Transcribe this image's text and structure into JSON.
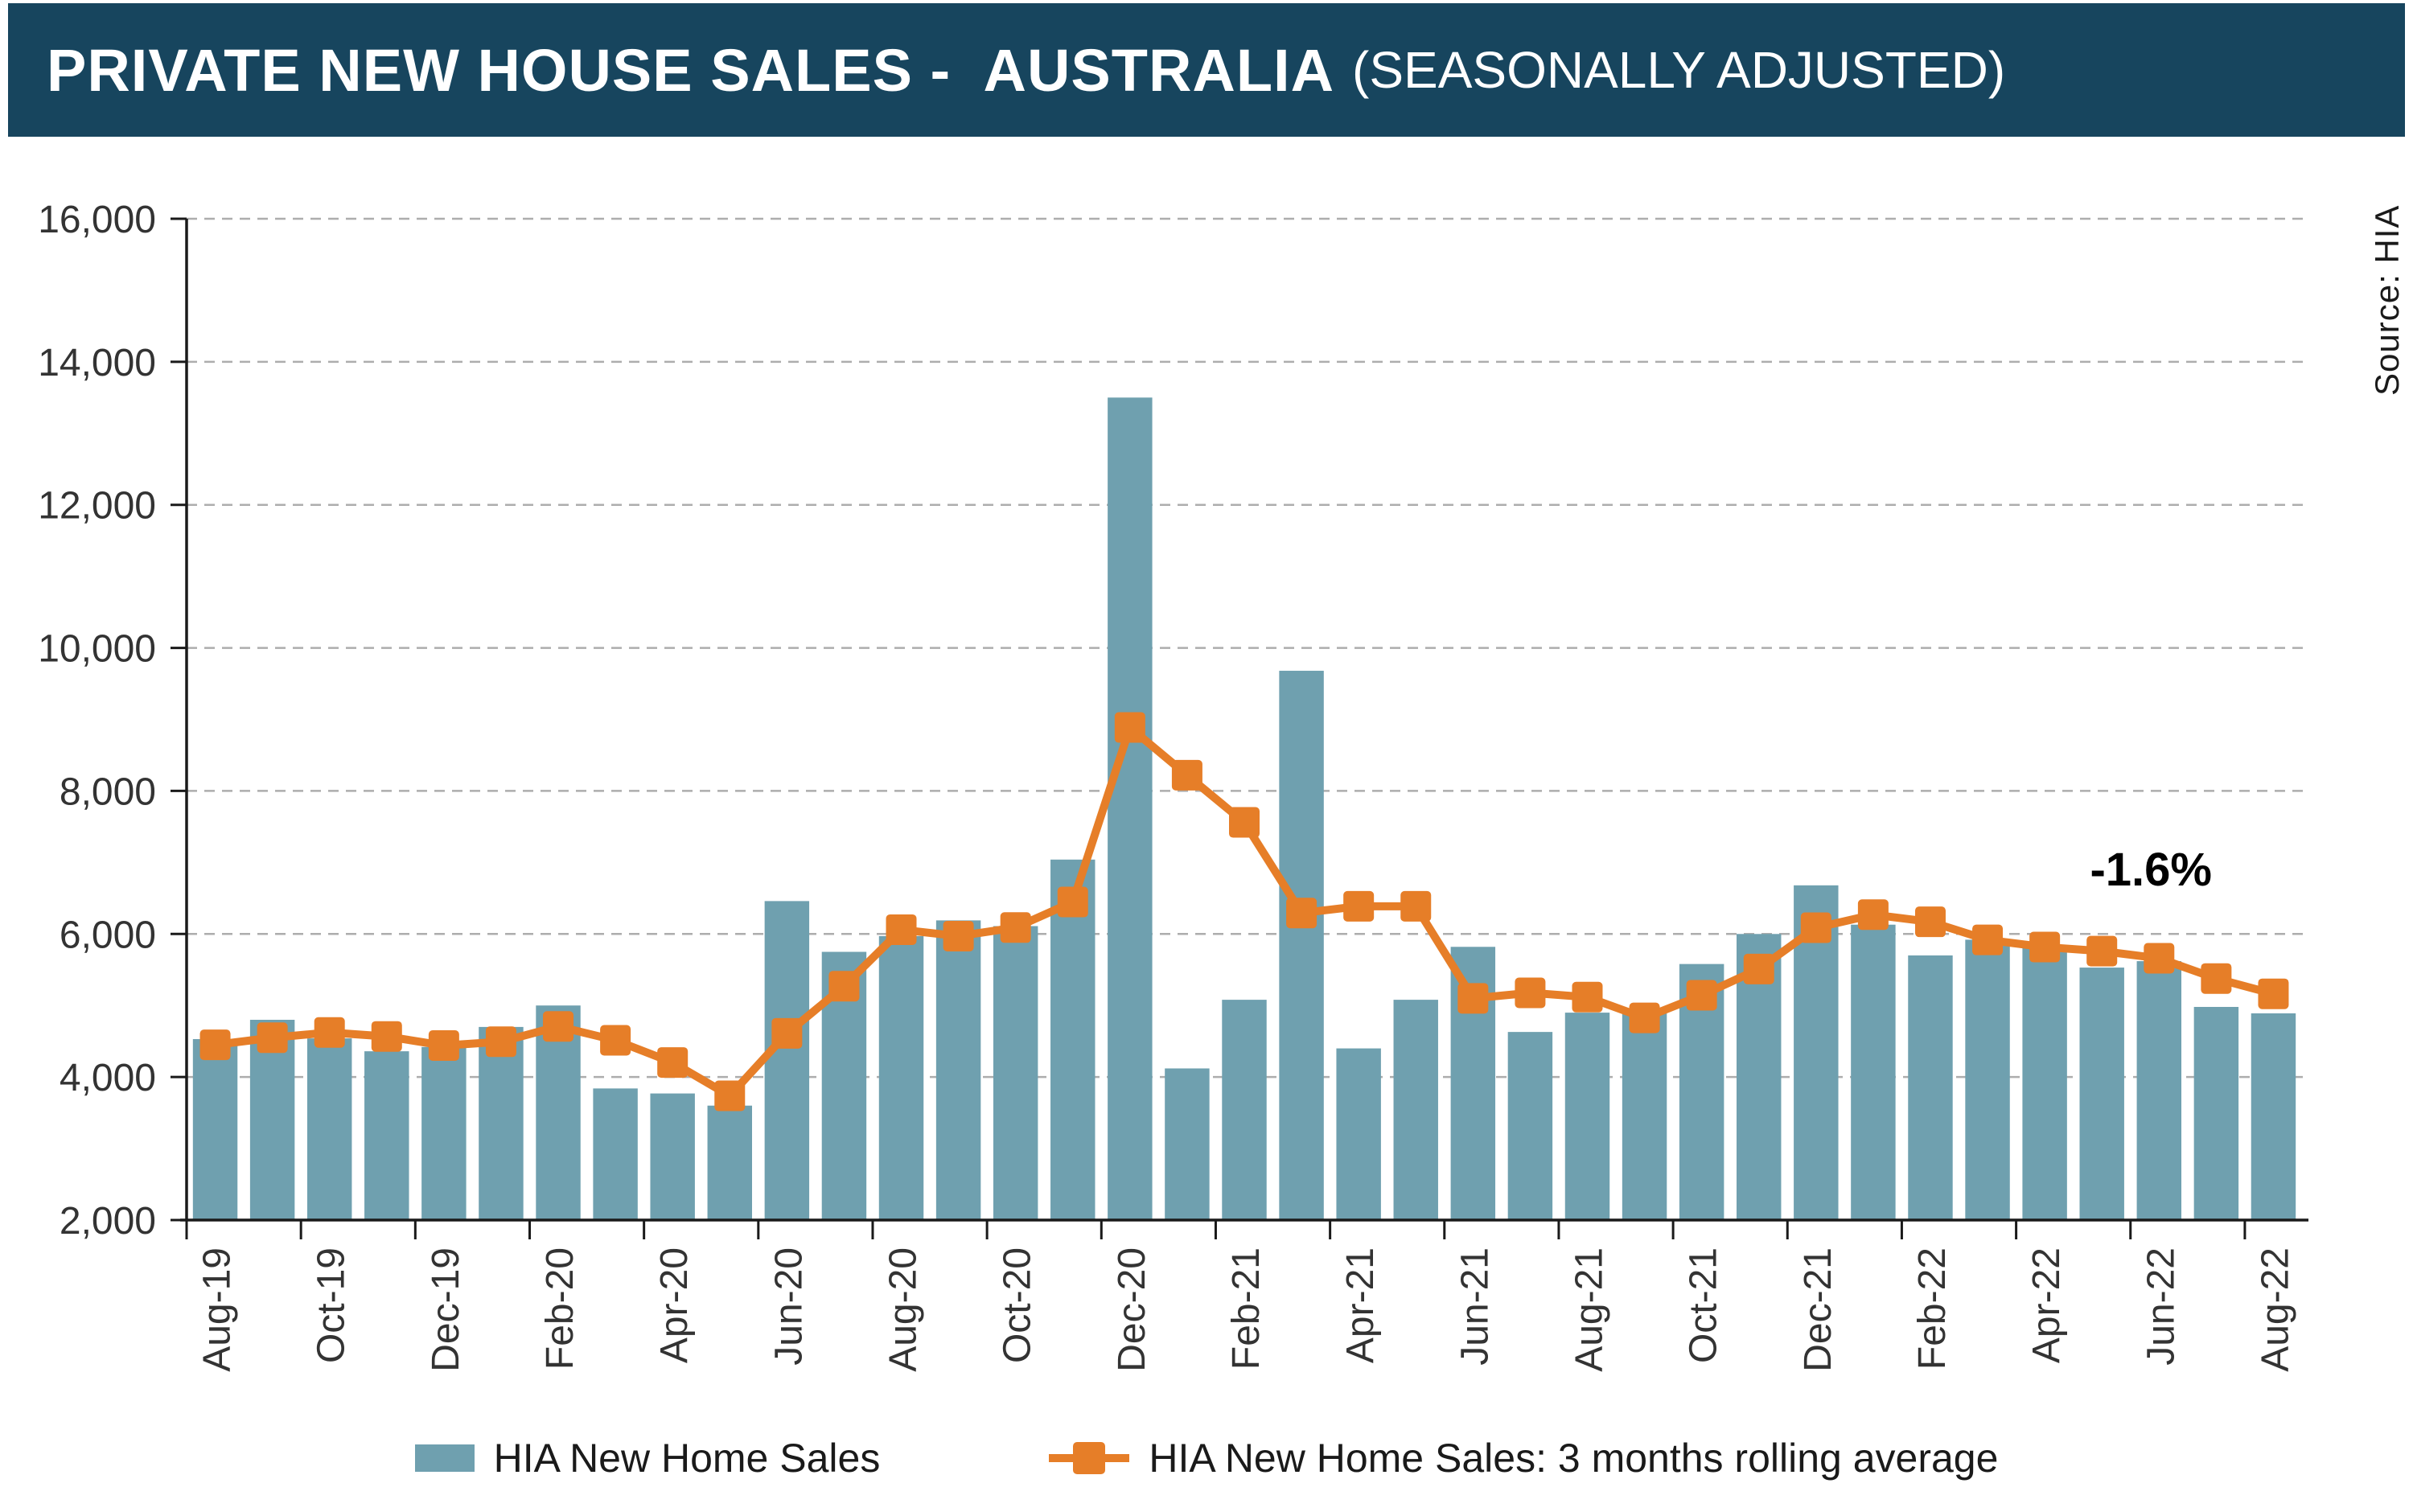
{
  "header": {
    "title_main": "PRIVATE NEW HOUSE SALES -  AUSTRALIA",
    "title_suffix": "(SEASONALLY ADJUSTED)"
  },
  "source_note": "Source: HIA",
  "annotation": {
    "text": "-1.6%"
  },
  "legend": {
    "bar_label": "HIA New Home Sales",
    "line_label": "HIA New Home Sales: 3 months rolling average"
  },
  "colors": {
    "header_bg": "#17455E",
    "bar": "#6FA0AF",
    "line": "#E67E28",
    "grid": "#ADADAD",
    "axis": "#1A1A1A",
    "text": "#333333"
  },
  "chart_data": {
    "type": "bar",
    "title": "PRIVATE NEW HOUSE SALES - AUSTRALIA (SEASONALLY ADJUSTED)",
    "xlabel": "",
    "ylabel": "",
    "ylim": [
      2000,
      16000
    ],
    "ytick_step": 2000,
    "ytick_labels": [
      "2,000",
      "4,000",
      "6,000",
      "8,000",
      "10,000",
      "12,000",
      "14,000",
      "16,000"
    ],
    "grid": "dashed-horizontal",
    "legend_position": "bottom",
    "xtick_every": 2,
    "categories": [
      "Aug-19",
      "Sep-19",
      "Oct-19",
      "Nov-19",
      "Dec-19",
      "Jan-20",
      "Feb-20",
      "Mar-20",
      "Apr-20",
      "May-20",
      "Jun-20",
      "Jul-20",
      "Aug-20",
      "Sep-20",
      "Oct-20",
      "Nov-20",
      "Dec-20",
      "Jan-21",
      "Feb-21",
      "Mar-21",
      "Apr-21",
      "May-21",
      "Jun-21",
      "Jul-21",
      "Aug-21",
      "Sep-21",
      "Oct-21",
      "Nov-21",
      "Dec-21",
      "Jan-22",
      "Feb-22",
      "Mar-22",
      "Apr-22",
      "May-22",
      "Jun-22",
      "Jul-22",
      "Aug-22"
    ],
    "series": [
      {
        "name": "HIA New Home Sales",
        "type": "bar",
        "values": [
          4530,
          4800,
          4540,
          4360,
          4420,
          4700,
          5000,
          3840,
          3770,
          3600,
          6460,
          5750,
          5970,
          6190,
          6110,
          7040,
          13500,
          4120,
          5080,
          9680,
          4400,
          5080,
          5820,
          4630,
          4900,
          4950,
          5580,
          6000,
          6680,
          6130,
          5700,
          5920,
          5830,
          5530,
          5620,
          4980,
          4890
        ]
      },
      {
        "name": "HIA New Home Sales: 3 months rolling average",
        "type": "line",
        "values": [
          4450,
          4550,
          4623,
          4567,
          4440,
          4493,
          4707,
          4513,
          4203,
          3737,
          4610,
          5270,
          6060,
          5970,
          6090,
          6447,
          8887,
          8220,
          7560,
          6293,
          6387,
          6387,
          5100,
          5177,
          5117,
          4827,
          5143,
          5510,
          6087,
          6270,
          6170,
          5917,
          5817,
          5760,
          5660,
          5377,
          5163
        ]
      }
    ]
  }
}
